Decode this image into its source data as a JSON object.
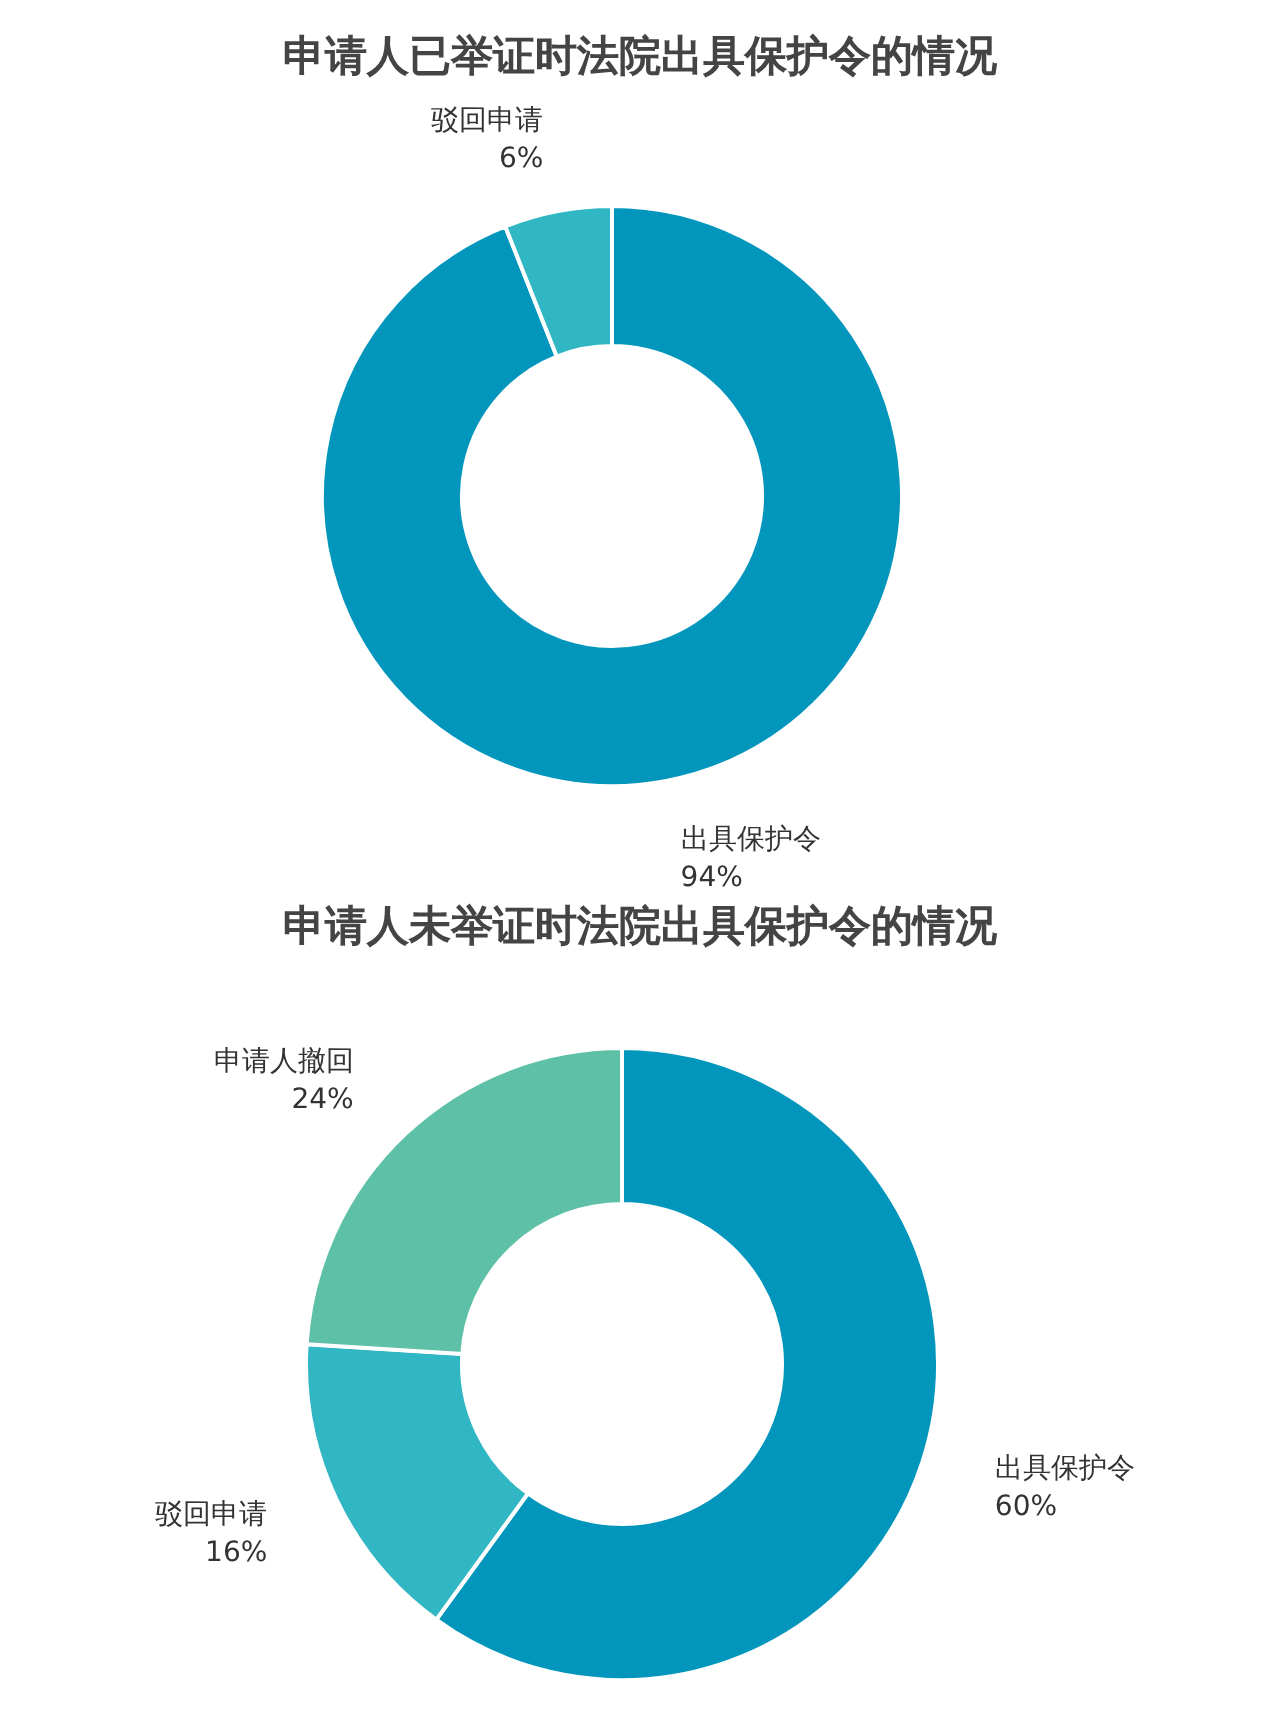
{
  "chart_data": [
    {
      "type": "donut",
      "title": "申请人已举证时法院出具保护令的情况",
      "categories": [
        "出具保护令",
        "驳回申请"
      ],
      "values": [
        94,
        6
      ],
      "colors": [
        "#0396bd",
        "#30b7c3"
      ],
      "value_labels": [
        "94%",
        "6%"
      ]
    },
    {
      "type": "donut",
      "title": "申请人未举证时法院出具保护令的情况",
      "categories": [
        "出具保护令",
        "驳回申请",
        "申请人撤回"
      ],
      "values": [
        60,
        16,
        24
      ],
      "colors": [
        "#0396bd",
        "#30b7c3",
        "#5ec0a6"
      ],
      "value_labels": [
        "60%",
        "16%",
        "24%"
      ]
    }
  ]
}
